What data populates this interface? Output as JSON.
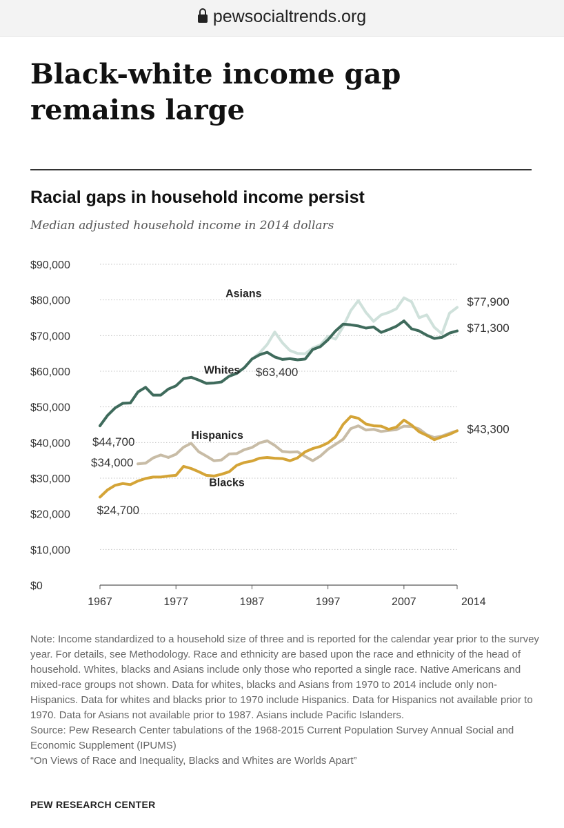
{
  "browser": {
    "domain": "pewsocialtrends.org",
    "lock_icon": "lock-icon"
  },
  "headline": "Black-white income gap remains large",
  "chart_data": {
    "type": "line",
    "title": "Racial gaps in household income persist",
    "subtitle": "Median adjusted household income in 2014 dollars",
    "xlabel": "",
    "ylabel": "",
    "xlim": [
      1967,
      2014
    ],
    "ylim": [
      0,
      90000
    ],
    "y_ticks": [
      0,
      10000,
      20000,
      30000,
      40000,
      50000,
      60000,
      70000,
      80000,
      90000
    ],
    "y_tick_labels": [
      "$0",
      "$10,000",
      "$20,000",
      "$30,000",
      "$40,000",
      "$50,000",
      "$60,000",
      "$70,000",
      "$80,000",
      "$90,000"
    ],
    "x_tick_labels": [
      "1967",
      "1977",
      "1987",
      "1997",
      "2007",
      "2014"
    ],
    "x_tick_values": [
      1967,
      1977,
      1987,
      1997,
      2007,
      2014
    ],
    "grid": true,
    "series": [
      {
        "name": "Whites",
        "color": "#3f6b5c",
        "label": "Whites",
        "x": [
          1967,
          1968,
          1969,
          1970,
          1971,
          1972,
          1973,
          1974,
          1975,
          1976,
          1977,
          1978,
          1979,
          1980,
          1981,
          1982,
          1983,
          1984,
          1985,
          1986,
          1987,
          1988,
          1989,
          1990,
          1991,
          1992,
          1993,
          1994,
          1995,
          1996,
          1997,
          1998,
          1999,
          2000,
          2001,
          2002,
          2003,
          2004,
          2005,
          2006,
          2007,
          2008,
          2009,
          2010,
          2011,
          2012,
          2013,
          2014
        ],
        "y": [
          44700,
          47600,
          49700,
          51000,
          51100,
          54200,
          55500,
          53300,
          53300,
          55000,
          55900,
          57900,
          58300,
          57500,
          56600,
          56700,
          57000,
          58600,
          59400,
          61000,
          63400,
          64600,
          65300,
          64000,
          63300,
          63500,
          63200,
          63400,
          66100,
          66900,
          68800,
          71300,
          73200,
          73000,
          72700,
          72100,
          72400,
          70900,
          71700,
          72600,
          74100,
          71900,
          71300,
          70100,
          69200,
          69500,
          70700,
          71300
        ],
        "annotations": [
          {
            "text": "$44,700",
            "x": 1967,
            "y": 44700
          },
          {
            "text": "$63,400",
            "x": 1987,
            "y": 63400
          },
          {
            "text": "$71,300",
            "x": 2014,
            "y": 71300
          }
        ]
      },
      {
        "name": "Asians",
        "color": "#cfe1db",
        "label": "Asians",
        "x": [
          1987,
          1988,
          1989,
          1990,
          1991,
          1992,
          1993,
          1994,
          1995,
          1996,
          1997,
          1998,
          1999,
          2000,
          2001,
          2002,
          2003,
          2004,
          2005,
          2006,
          2007,
          2008,
          2009,
          2010,
          2011,
          2012,
          2013,
          2014
        ],
        "y": [
          63400,
          65100,
          67500,
          71000,
          68000,
          65800,
          65000,
          64900,
          66500,
          67400,
          69800,
          69000,
          72500,
          77000,
          79800,
          76500,
          74000,
          75800,
          76500,
          77500,
          80600,
          79500,
          75000,
          75800,
          72300,
          70500,
          76300,
          77900
        ],
        "annotations": [
          {
            "text": "$77,900",
            "x": 2014,
            "y": 77900
          }
        ]
      },
      {
        "name": "Hispanics",
        "color": "#c8bca6",
        "label": "Hispanics",
        "x": [
          1972,
          1973,
          1974,
          1975,
          1976,
          1977,
          1978,
          1979,
          1980,
          1981,
          1982,
          1983,
          1984,
          1985,
          1986,
          1987,
          1988,
          1989,
          1990,
          1991,
          1992,
          1993,
          1994,
          1995,
          1996,
          1997,
          1998,
          1999,
          2000,
          2001,
          2002,
          2003,
          2004,
          2005,
          2006,
          2007,
          2008,
          2009,
          2010,
          2011,
          2012,
          2013,
          2014
        ],
        "y": [
          34000,
          34200,
          35700,
          36500,
          35800,
          36700,
          38700,
          39800,
          37400,
          36200,
          34900,
          35100,
          36800,
          36900,
          38000,
          38600,
          39900,
          40500,
          39200,
          37500,
          37300,
          37400,
          36100,
          34900,
          36200,
          38100,
          39500,
          40900,
          43900,
          44700,
          43500,
          43700,
          43100,
          43400,
          43600,
          44600,
          44500,
          43800,
          42200,
          41400,
          41800,
          42600,
          43300
        ],
        "annotations": [
          {
            "text": "$34,000",
            "x": 1972,
            "y": 34000
          }
        ]
      },
      {
        "name": "Blacks",
        "color": "#d4a437",
        "label": "Blacks",
        "x": [
          1967,
          1968,
          1969,
          1970,
          1971,
          1972,
          1973,
          1974,
          1975,
          1976,
          1977,
          1978,
          1979,
          1980,
          1981,
          1982,
          1983,
          1984,
          1985,
          1986,
          1987,
          1988,
          1989,
          1990,
          1991,
          1992,
          1993,
          1994,
          1995,
          1996,
          1997,
          1998,
          1999,
          2000,
          2001,
          2002,
          2003,
          2004,
          2005,
          2006,
          2007,
          2008,
          2009,
          2010,
          2011,
          2012,
          2013,
          2014
        ],
        "y": [
          24700,
          26700,
          28000,
          28500,
          28200,
          29200,
          29900,
          30300,
          30300,
          30600,
          30800,
          33300,
          32700,
          31800,
          30800,
          30600,
          31100,
          31800,
          33600,
          34400,
          34800,
          35600,
          35800,
          35600,
          35500,
          34900,
          35700,
          37400,
          38300,
          38900,
          39900,
          41600,
          45100,
          47300,
          46800,
          45200,
          44700,
          44600,
          43700,
          44300,
          46300,
          44900,
          43000,
          42000,
          40800,
          41600,
          42300,
          43300
        ],
        "annotations": [
          {
            "text": "$24,700",
            "x": 1967,
            "y": 24700
          },
          {
            "text": "$43,300",
            "x": 2014,
            "y": 43300
          }
        ]
      }
    ]
  },
  "footnotes": {
    "note": "Note: Income standardized to a household size of three and is reported for the calendar year prior to the survey year. For details, see Methodology. Race and ethnicity are based upon the race and ethnicity of the head of household. Whites, blacks and Asians include only those who reported a single race. Native Americans and mixed-race groups not shown. Data for whites, blacks and Asians from 1970 to 2014 include only non-Hispanics. Data for whites and blacks prior to 1970 include Hispanics. Data for Hispanics not available prior to 1970. Data for Asians not available prior to 1987. Asians include Pacific Islanders.",
    "source": "Source: Pew Research Center tabulations of the 1968-2015 Current Population Survey Annual Social and Economic Supplement (IPUMS)",
    "report": "“On Views of Race and Inequality, Blacks and Whites are Worlds Apart”",
    "brand": "PEW RESEARCH CENTER"
  }
}
